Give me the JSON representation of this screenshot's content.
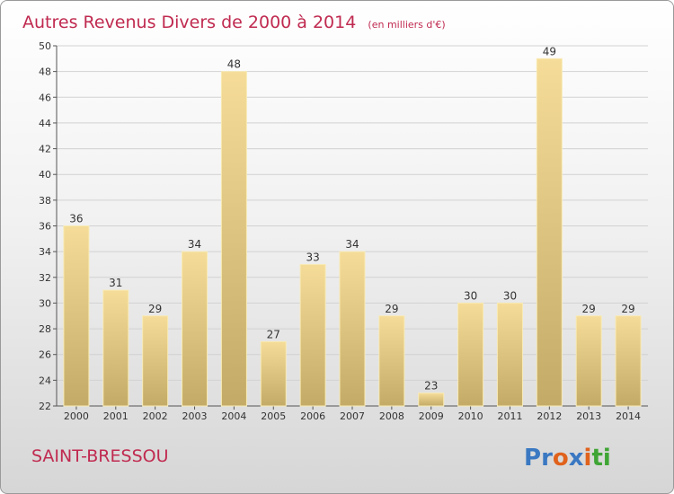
{
  "chart_data": {
    "type": "bar",
    "title": "Autres Revenus Divers de 2000 à 2014",
    "subtitle": "(en milliers d'€)",
    "categories": [
      "2000",
      "2001",
      "2002",
      "2003",
      "2004",
      "2005",
      "2006",
      "2007",
      "2008",
      "2009",
      "2010",
      "2011",
      "2012",
      "2013",
      "2014"
    ],
    "values": [
      36,
      31,
      29,
      34,
      48,
      27,
      33,
      34,
      29,
      23,
      30,
      30,
      49,
      29,
      29
    ],
    "ylim": [
      22,
      50
    ],
    "yticks": [
      22,
      24,
      26,
      28,
      30,
      32,
      34,
      36,
      38,
      40,
      42,
      44,
      46,
      48,
      50
    ],
    "grid": true,
    "bar_color": "#e6cf86",
    "bar_edge_color": "#f8eab4"
  },
  "footer": {
    "place": "SAINT-BRESSOU",
    "logo": [
      "P",
      "r",
      "o",
      "x",
      "i",
      "t",
      "i"
    ]
  },
  "colors": {
    "title": "#c02a50",
    "logo": [
      "#3a78c2",
      "#3a78c2",
      "#e0621c",
      "#3a78c2",
      "#e0621c",
      "#3fa535",
      "#3fa535"
    ]
  }
}
